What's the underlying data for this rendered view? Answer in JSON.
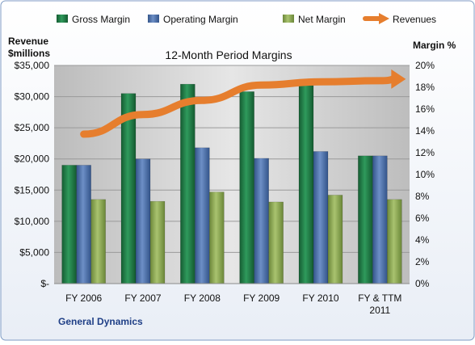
{
  "chart_data": {
    "type": "bar",
    "title": "12-Month Period Margins",
    "company": "General Dynamics",
    "y_left_label_line1": "Revenue",
    "y_left_label_line2": "$millions",
    "y_right_label": "Margin %",
    "categories": [
      "FY 2006",
      "FY 2007",
      "FY 2008",
      "FY 2009",
      "FY 2010",
      "FY & TTM 2011"
    ],
    "category_lines": [
      [
        "FY 2006"
      ],
      [
        "FY 2007"
      ],
      [
        "FY 2008"
      ],
      [
        "FY 2009"
      ],
      [
        "FY 2010"
      ],
      [
        "FY & TTM",
        "2011"
      ]
    ],
    "series": [
      {
        "name": "Gross Margin",
        "values": [
          19000,
          30500,
          32000,
          30800,
          31800,
          20500
        ],
        "color": "#1f7a45"
      },
      {
        "name": "Operating Margin",
        "values": [
          19000,
          20000,
          21800,
          20100,
          21200,
          20500
        ],
        "color": "#4a6ea8"
      },
      {
        "name": "Net Margin",
        "values": [
          13500,
          13200,
          14700,
          13100,
          14200,
          13500
        ],
        "color": "#8fac55"
      }
    ],
    "revenue_line": {
      "name": "Revenues",
      "values": [
        13.7,
        15.5,
        16.8,
        18.2,
        18.5,
        18.6
      ],
      "color": "#e67e2e"
    },
    "ylim_left": [
      0,
      35000
    ],
    "yticks_left": [
      "$-",
      "$5,000",
      "$10,000",
      "$15,000",
      "$20,000",
      "$25,000",
      "$30,000",
      "$35,000"
    ],
    "ylim_right": [
      0,
      20
    ],
    "yticks_right": [
      "0%",
      "2%",
      "4%",
      "6%",
      "8%",
      "10%",
      "12%",
      "14%",
      "16%",
      "18%",
      "20%"
    ],
    "grid": true,
    "legend_position": "top"
  }
}
